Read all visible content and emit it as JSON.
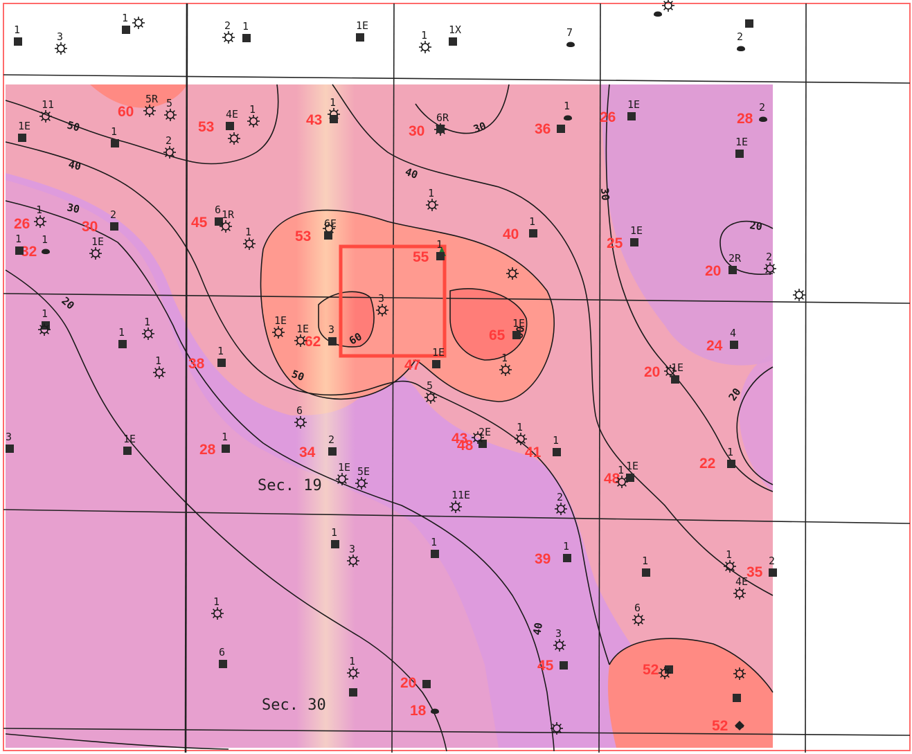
{
  "map": {
    "colors": {
      "background": "#ffffff",
      "low_fill": "#de9bdd",
      "mid_fill": "#f4a8b6",
      "high_fill": "#ff8a83",
      "value_text": "#ff3b3b",
      "contour_line": "#1a1a1a",
      "highlight_box": "#ff4a40",
      "marker_triangle": "#1e7a2e"
    },
    "section_labels": [
      "Sec. 19",
      "Sec. 30"
    ],
    "contour_labels": [
      "50",
      "40",
      "30",
      "20",
      "40",
      "60",
      "50",
      "30",
      "40",
      "20",
      "60",
      "30",
      "20",
      "40"
    ],
    "values": [
      "60",
      "53",
      "43",
      "30",
      "36",
      "26",
      "28",
      "26",
      "30",
      "45",
      "53",
      "55",
      "40",
      "25",
      "20",
      "32",
      "62",
      "65",
      "24",
      "38",
      "47",
      "20",
      "28",
      "34",
      "43",
      "48",
      "41",
      "22",
      "48",
      "39",
      "35",
      "45",
      "52",
      "20",
      "18",
      "52"
    ],
    "well_labels": [
      "1",
      "3",
      "1",
      "2",
      "1",
      "1E",
      "1",
      "1X",
      "7",
      "2",
      "11",
      "5R",
      "5",
      "4E",
      "1",
      "1",
      "1E",
      "1",
      "2",
      "6R",
      "1",
      "2",
      "1E",
      "1E",
      "1",
      "2",
      "1E",
      "6",
      "1R",
      "1",
      "6E",
      "1",
      "1",
      "1E",
      "1",
      "1",
      "1",
      "1E",
      "2R",
      "2",
      "1",
      "1",
      "1",
      "1",
      "1E",
      "1E",
      "3",
      "3",
      "1E",
      "4",
      "1",
      "1E",
      "1",
      "1E",
      "5",
      "6",
      "3",
      "1E",
      "1",
      "2",
      "2E",
      "1",
      "1",
      "1",
      "1E",
      "1",
      "1E",
      "5E",
      "11E",
      "2",
      "1",
      "3",
      "1",
      "1",
      "1",
      "1",
      "2",
      "4E",
      "1",
      "6",
      "3",
      "6",
      "1"
    ]
  }
}
